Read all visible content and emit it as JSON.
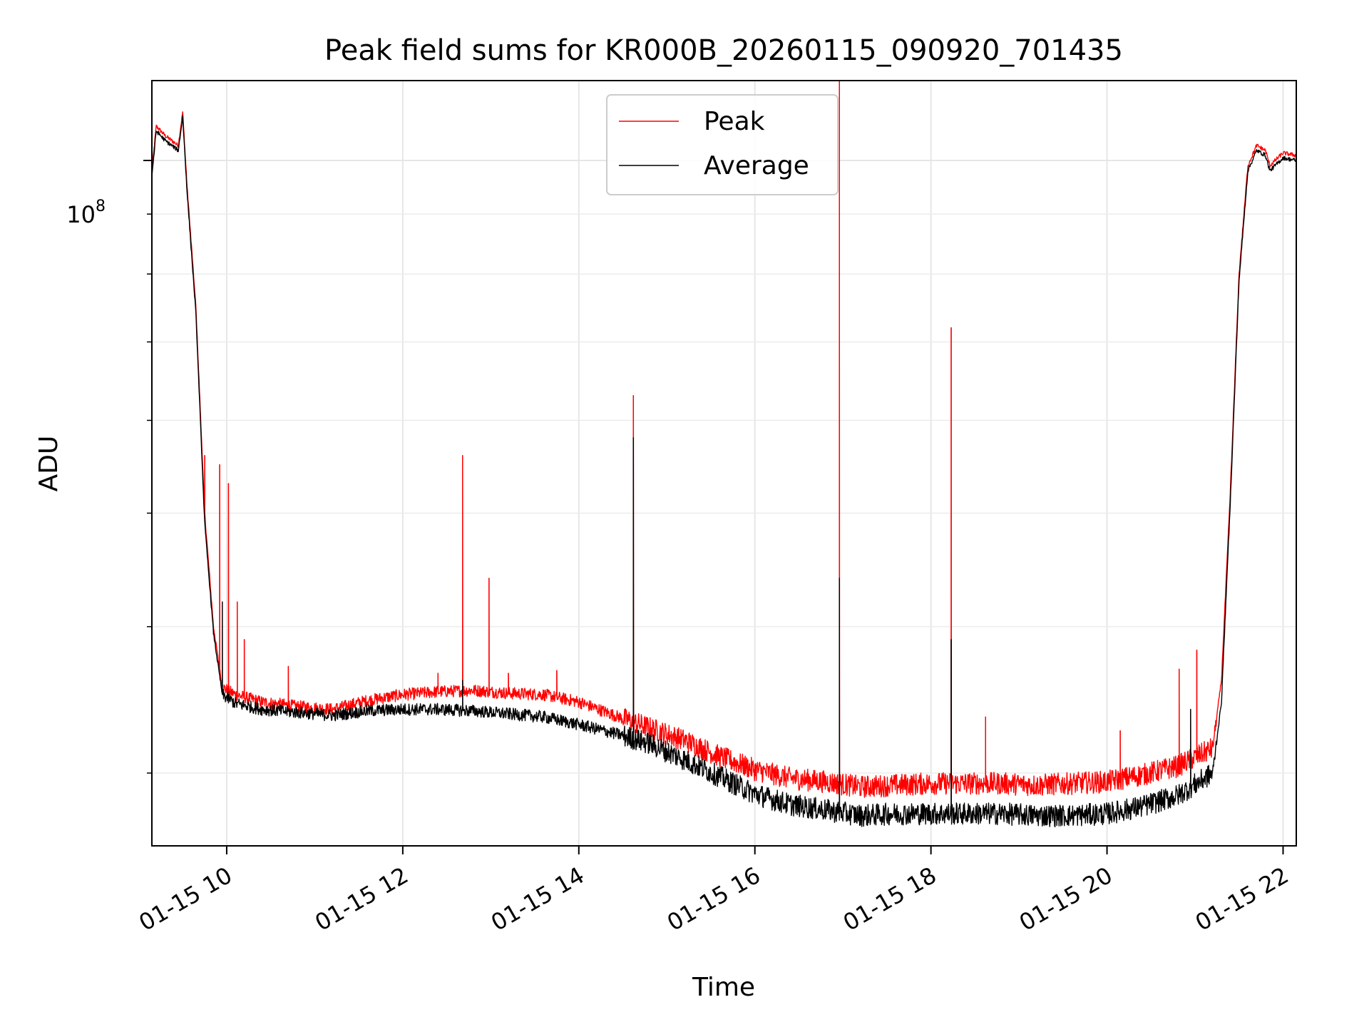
{
  "chart_data": {
    "type": "line",
    "title": "Peak field sums for KR000B_20260115_090920_701435",
    "xlabel": "Time",
    "ylabel": "ADU",
    "y_scale": "log",
    "y_major_tick_label": {
      "base": "10",
      "exponent": "8"
    },
    "ylim": [
      26000000,
      117000000
    ],
    "xlim_hours": [
      9.15,
      22.15
    ],
    "x_ticks": [
      {
        "hour": 10,
        "label": "01-15 10"
      },
      {
        "hour": 12,
        "label": "01-15 12"
      },
      {
        "hour": 14,
        "label": "01-15 14"
      },
      {
        "hour": 16,
        "label": "01-15 16"
      },
      {
        "hour": 18,
        "label": "01-15 18"
      },
      {
        "hour": 20,
        "label": "01-15 20"
      },
      {
        "hour": 22,
        "label": "01-15 22"
      }
    ],
    "y_minor_ticks": [
      30000000,
      40000000,
      50000000,
      60000000,
      70000000,
      80000000,
      90000000
    ],
    "grid": true,
    "legend_position": "top-center",
    "series": [
      {
        "name": "Peak",
        "color": "#ff0000",
        "x": [
          9.15,
          9.2,
          9.3,
          9.45,
          9.5,
          9.55,
          9.65,
          9.75,
          9.85,
          9.95,
          10.1,
          10.4,
          10.8,
          11.2,
          11.6,
          12.0,
          12.4,
          12.8,
          13.2,
          13.6,
          14.0,
          14.5,
          14.8,
          15.2,
          15.6,
          16.0,
          16.4,
          16.8,
          17.2,
          17.6,
          18.0,
          18.4,
          18.8,
          19.2,
          19.6,
          20.0,
          20.4,
          20.8,
          21.2,
          21.3,
          21.4,
          21.5,
          21.6,
          21.7,
          21.8,
          21.85,
          22.0,
          22.15
        ],
        "y": [
          98000000,
          107000000,
          105000000,
          103000000,
          110000000,
          95000000,
          75000000,
          50000000,
          40000000,
          35500000,
          35000000,
          34500000,
          34200000,
          34000000,
          34600000,
          35000000,
          35200000,
          35300000,
          35100000,
          35000000,
          34500000,
          33400000,
          32800000,
          32000000,
          31000000,
          30200000,
          29700000,
          29500000,
          29200000,
          29300000,
          29400000,
          29400000,
          29400000,
          29300000,
          29400000,
          29500000,
          29900000,
          30400000,
          31500000,
          36000000,
          52000000,
          80000000,
          99000000,
          103000000,
          102000000,
          99000000,
          101500000,
          101000000
        ],
        "spikes": [
          {
            "x": 9.75,
            "y": 56000000
          },
          {
            "x": 9.92,
            "y": 55000000
          },
          {
            "x": 10.02,
            "y": 53000000
          },
          {
            "x": 10.12,
            "y": 42000000
          },
          {
            "x": 10.2,
            "y": 39000000
          },
          {
            "x": 10.7,
            "y": 37000000
          },
          {
            "x": 12.4,
            "y": 36500000
          },
          {
            "x": 12.68,
            "y": 56000000
          },
          {
            "x": 12.98,
            "y": 44000000
          },
          {
            "x": 13.2,
            "y": 36500000
          },
          {
            "x": 13.75,
            "y": 36700000
          },
          {
            "x": 14.62,
            "y": 63000000
          },
          {
            "x": 16.96,
            "y": 117000000
          },
          {
            "x": 18.23,
            "y": 72000000
          },
          {
            "x": 18.62,
            "y": 33500000
          },
          {
            "x": 20.15,
            "y": 32600000
          },
          {
            "x": 20.82,
            "y": 36800000
          },
          {
            "x": 21.02,
            "y": 38200000
          }
        ]
      },
      {
        "name": "Average",
        "color": "#000000",
        "x": [
          9.15,
          9.2,
          9.3,
          9.45,
          9.5,
          9.55,
          9.65,
          9.75,
          9.85,
          9.95,
          10.1,
          10.4,
          10.8,
          11.2,
          11.6,
          12.0,
          12.4,
          12.8,
          13.2,
          13.6,
          14.0,
          14.5,
          14.8,
          15.2,
          15.6,
          16.0,
          16.4,
          16.8,
          17.2,
          17.6,
          18.0,
          18.4,
          18.8,
          19.2,
          19.6,
          20.0,
          20.4,
          20.8,
          21.2,
          21.3,
          21.4,
          21.5,
          21.6,
          21.7,
          21.8,
          21.85,
          22.0,
          22.15
        ],
        "y": [
          97000000,
          106000000,
          104000000,
          102000000,
          109000000,
          94000000,
          74000000,
          49000000,
          39500000,
          35000000,
          34400000,
          34000000,
          33800000,
          33600000,
          33900000,
          34000000,
          34000000,
          33900000,
          33700000,
          33500000,
          33000000,
          32300000,
          31800000,
          30800000,
          29800000,
          28800000,
          28200000,
          27900000,
          27600000,
          27700000,
          27700000,
          27700000,
          27700000,
          27600000,
          27600000,
          27700000,
          28100000,
          28700000,
          30000000,
          34500000,
          51000000,
          79000000,
          98000000,
          102000000,
          101000000,
          98000000,
          100500000,
          100000000
        ],
        "spikes": [
          {
            "x": 14.62,
            "y": 58000000
          },
          {
            "x": 16.96,
            "y": 44000000
          },
          {
            "x": 18.23,
            "y": 39000000
          },
          {
            "x": 9.95,
            "y": 42000000
          },
          {
            "x": 12.68,
            "y": 36000000
          },
          {
            "x": 20.95,
            "y": 34000000
          }
        ]
      }
    ]
  }
}
